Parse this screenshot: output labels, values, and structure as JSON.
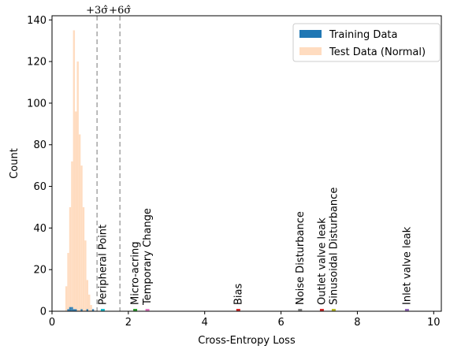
{
  "chart_data": {
    "type": "histogram",
    "xlabel": "Cross-Entropy Loss",
    "ylabel": "Count",
    "xlim": [
      0,
      10.2
    ],
    "ylim": [
      0,
      142
    ],
    "xticks": [
      0,
      2,
      4,
      6,
      8,
      10
    ],
    "yticks": [
      0,
      20,
      40,
      60,
      80,
      100,
      120,
      140
    ],
    "grid": false,
    "legend": {
      "placement": "top-right",
      "entries": [
        {
          "label": "Training Data",
          "color": "#1f77b4"
        },
        {
          "label": "Test Data (Normal)",
          "color": "#ffdcc0"
        }
      ]
    },
    "bin_width": 0.05,
    "series": [
      {
        "name": "Test Data (Normal)",
        "color": "#ffdcc0",
        "bins": [
          {
            "x": 0.35,
            "count": 12
          },
          {
            "x": 0.4,
            "count": 28
          },
          {
            "x": 0.45,
            "count": 50
          },
          {
            "x": 0.5,
            "count": 72
          },
          {
            "x": 0.55,
            "count": 135
          },
          {
            "x": 0.6,
            "count": 96
          },
          {
            "x": 0.65,
            "count": 120
          },
          {
            "x": 0.7,
            "count": 85
          },
          {
            "x": 0.75,
            "count": 70
          },
          {
            "x": 0.8,
            "count": 50
          },
          {
            "x": 0.85,
            "count": 34
          },
          {
            "x": 0.9,
            "count": 15
          },
          {
            "x": 0.95,
            "count": 8
          },
          {
            "x": 1.0,
            "count": 3
          },
          {
            "x": 1.05,
            "count": 1
          }
        ]
      },
      {
        "name": "Training Data",
        "color": "#1f77b4",
        "bins": [
          {
            "x": 0.4,
            "count": 1
          },
          {
            "x": 0.45,
            "count": 2
          },
          {
            "x": 0.5,
            "count": 2
          },
          {
            "x": 0.55,
            "count": 1
          },
          {
            "x": 0.6,
            "count": 1
          },
          {
            "x": 0.75,
            "count": 1
          },
          {
            "x": 0.9,
            "count": 1
          },
          {
            "x": 1.05,
            "count": 1
          }
        ]
      }
    ],
    "thresholds": [
      {
        "label": "+3σ̂",
        "x": 1.18
      },
      {
        "label": "+6σ̂",
        "x": 1.78
      }
    ],
    "annotations": [
      {
        "label": "Peripheral Point",
        "x": 1.33,
        "color": "#17becf"
      },
      {
        "label": "Micro-acring",
        "x": 2.18,
        "color": "#2ca02c"
      },
      {
        "label": "Temporary Change",
        "x": 2.5,
        "color": "#e377c2"
      },
      {
        "label": "Bias",
        "x": 4.88,
        "color": "#d62728"
      },
      {
        "label": "Noise Disturbance",
        "x": 6.5,
        "color": "#7f7f7f"
      },
      {
        "label": "Outlet valve leak",
        "x": 7.07,
        "color": "#d62728"
      },
      {
        "label": "Sinusoidal Disturbance",
        "x": 7.38,
        "color": "#bcbd22"
      },
      {
        "label": "Inlet valve leak",
        "x": 9.3,
        "color": "#9467bd"
      }
    ]
  }
}
